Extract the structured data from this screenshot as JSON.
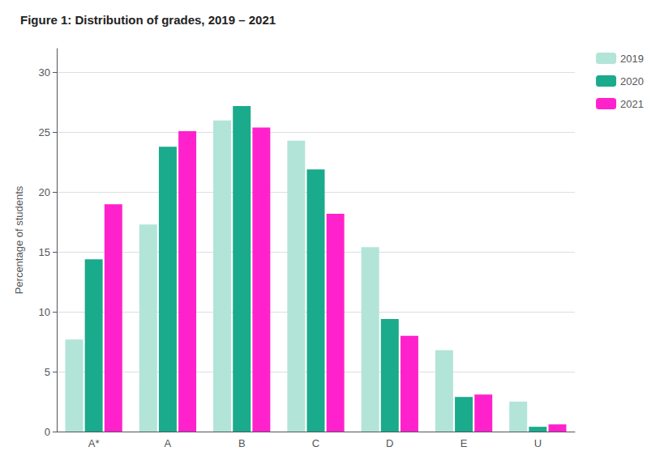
{
  "chart_data": {
    "type": "bar",
    "title": "Figure 1: Distribution of grades, 2019 – 2021",
    "categories": [
      "A*",
      "A",
      "B",
      "C",
      "D",
      "E",
      "U"
    ],
    "series": [
      {
        "name": "2019",
        "color": "#b2e4d8",
        "values": [
          7.7,
          17.3,
          26.0,
          24.3,
          15.4,
          6.8,
          2.5
        ]
      },
      {
        "name": "2020",
        "color": "#1aaa8c",
        "values": [
          14.4,
          23.8,
          27.2,
          21.9,
          9.4,
          2.9,
          0.4
        ]
      },
      {
        "name": "2021",
        "color": "#ff22cc",
        "values": [
          19.0,
          25.1,
          25.4,
          18.2,
          8.0,
          3.1,
          0.6
        ]
      }
    ],
    "ylabel": "Percentage of students",
    "ylim": [
      0,
      32
    ],
    "yticks": [
      0,
      5,
      10,
      15,
      20,
      25,
      30
    ],
    "grid": true,
    "legend": "upper right"
  }
}
